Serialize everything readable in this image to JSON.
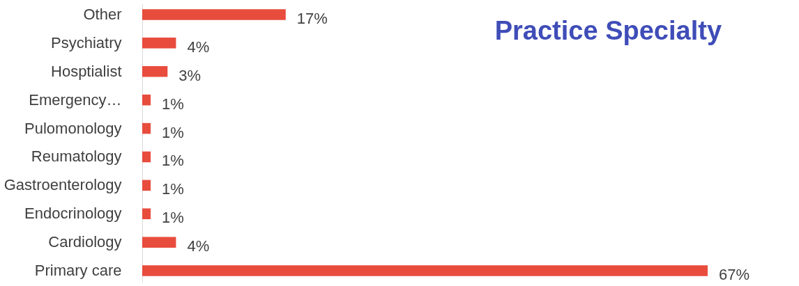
{
  "chart_data": {
    "type": "bar",
    "orientation": "horizontal",
    "title": "Practice Specialty",
    "categories": [
      "Other",
      "Psychiatry",
      "Hosptialist",
      "Emergency…",
      "Pulomonology",
      "Reumatology",
      "Gastroenterology",
      "Endocrinology",
      "Cardiology",
      "Primary care"
    ],
    "values": [
      17,
      4,
      3,
      1,
      1,
      1,
      1,
      1,
      4,
      67
    ],
    "value_labels": [
      "17%",
      "4%",
      "3%",
      "1%",
      "1%",
      "1%",
      "1%",
      "1%",
      "4%",
      "67%"
    ],
    "color": "#e84c3d"
  }
}
